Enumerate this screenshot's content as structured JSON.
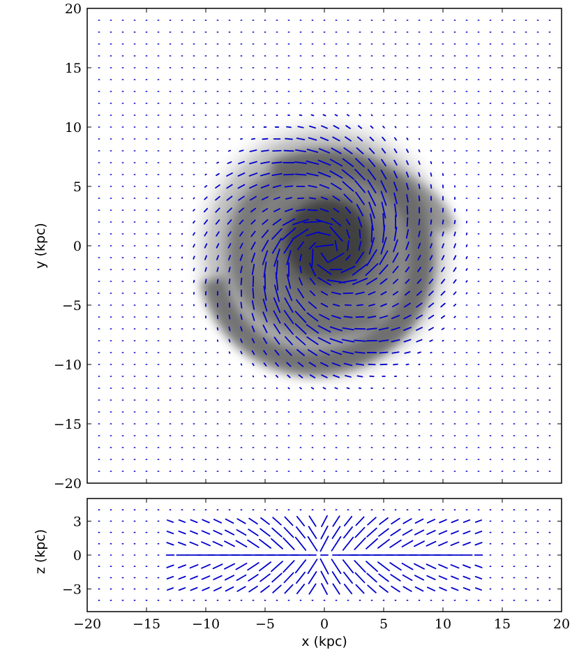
{
  "chart_data": [
    {
      "type": "vector-field",
      "panel": "top",
      "xlabel": "",
      "ylabel": "y (kpc)",
      "xlim": [
        -20,
        20
      ],
      "ylim": [
        -20,
        20
      ],
      "xticks": [
        -20,
        -15,
        -10,
        -5,
        0,
        5,
        10,
        15,
        20
      ],
      "yticks": [
        -20,
        -15,
        -10,
        -5,
        0,
        5,
        10,
        15,
        20
      ],
      "ytick_labels": [
        "−20",
        "−15",
        "−10",
        "−5",
        "0",
        "5",
        "10",
        "15",
        "20"
      ],
      "grid_step_kpc": 1,
      "background": "grayscale density of a two-armed spiral disk, radius ~11 kpc",
      "vector_color": "#0000cc",
      "field": "azimuthal spiral magnetic field, strongest along spiral arms"
    },
    {
      "type": "vector-field",
      "panel": "bottom",
      "xlabel": "x (kpc)",
      "ylabel": "z (kpc)",
      "xlim": [
        -20,
        20
      ],
      "ylim": [
        -5,
        5
      ],
      "xticks": [
        -20,
        -15,
        -10,
        -5,
        0,
        5,
        10,
        15,
        20
      ],
      "xtick_labels": [
        "−20",
        "−15",
        "−10",
        "−5",
        "0",
        "5",
        "10",
        "15",
        "20"
      ],
      "yticks": [
        -3,
        0,
        3
      ],
      "ytick_labels": [
        "−3",
        "0",
        "3"
      ],
      "vector_color": "#0000cc",
      "field": "X-shaped halo field above and below the disk plane"
    }
  ]
}
